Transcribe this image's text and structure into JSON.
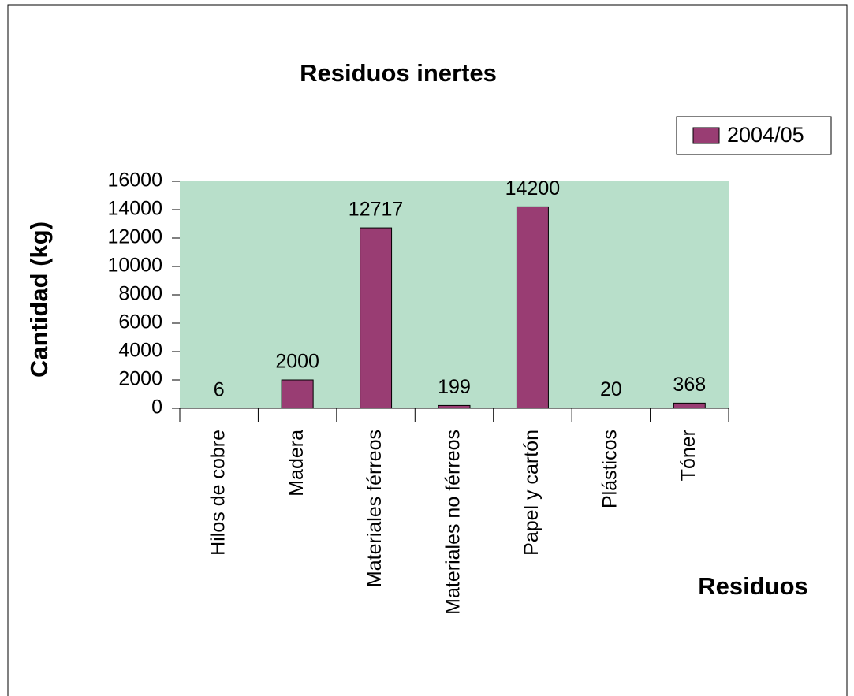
{
  "chart_data": {
    "type": "bar",
    "title": "Residuos inertes",
    "x_label": "Residuos",
    "y_label": "Cantidad (kg)",
    "categories": [
      "Hilos de cobre",
      "Madera",
      "Materiales férreos",
      "Materiales no férreos",
      "Papel y cartón",
      "Plásticos",
      "Tóner"
    ],
    "series": [
      {
        "name": "2004/05",
        "color": "#993d73",
        "values": [
          6,
          2000,
          12717,
          199,
          14200,
          20,
          368
        ]
      }
    ],
    "ylim": [
      0,
      16000
    ],
    "yticks": [
      0,
      2000,
      4000,
      6000,
      8000,
      10000,
      12000,
      14000,
      16000
    ],
    "legend": "top-right",
    "plot_background": "#b8dfca"
  }
}
